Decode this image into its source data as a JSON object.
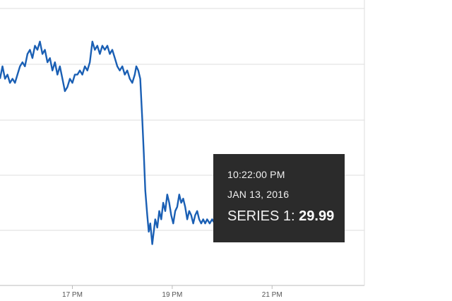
{
  "chart_data": {
    "type": "line",
    "title": "",
    "xlabel": "",
    "ylabel": "",
    "x_ticks": [
      "17 PM",
      "19 PM",
      "21 PM"
    ],
    "x_tick_hours": [
      17,
      19,
      21
    ],
    "xlim_hours": [
      15.55,
      22.85
    ],
    "ylim": [
      29.8,
      30.47
    ],
    "grid": true,
    "legend": "none",
    "series": [
      {
        "color": "#1a5fb4",
        "points": [
          [
            15.55,
            30.3
          ],
          [
            15.6,
            30.33
          ],
          [
            15.65,
            30.3
          ],
          [
            15.7,
            30.31
          ],
          [
            15.75,
            30.29
          ],
          [
            15.8,
            30.3
          ],
          [
            15.85,
            30.29
          ],
          [
            15.9,
            30.31
          ],
          [
            15.95,
            30.33
          ],
          [
            16.0,
            30.34
          ],
          [
            16.05,
            30.33
          ],
          [
            16.1,
            30.36
          ],
          [
            16.15,
            30.37
          ],
          [
            16.2,
            30.35
          ],
          [
            16.25,
            30.38
          ],
          [
            16.3,
            30.37
          ],
          [
            16.35,
            30.39
          ],
          [
            16.4,
            30.36
          ],
          [
            16.45,
            30.37
          ],
          [
            16.5,
            30.34
          ],
          [
            16.55,
            30.35
          ],
          [
            16.6,
            30.32
          ],
          [
            16.65,
            30.34
          ],
          [
            16.7,
            30.31
          ],
          [
            16.75,
            30.33
          ],
          [
            16.8,
            30.3
          ],
          [
            16.85,
            30.27
          ],
          [
            16.9,
            30.28
          ],
          [
            16.95,
            30.3
          ],
          [
            17.0,
            30.29
          ],
          [
            17.05,
            30.31
          ],
          [
            17.1,
            30.31
          ],
          [
            17.15,
            30.32
          ],
          [
            17.2,
            30.31
          ],
          [
            17.25,
            30.33
          ],
          [
            17.3,
            30.32
          ],
          [
            17.35,
            30.34
          ],
          [
            17.4,
            30.39
          ],
          [
            17.45,
            30.37
          ],
          [
            17.5,
            30.38
          ],
          [
            17.55,
            30.36
          ],
          [
            17.6,
            30.38
          ],
          [
            17.65,
            30.37
          ],
          [
            17.7,
            30.38
          ],
          [
            17.75,
            30.36
          ],
          [
            17.8,
            30.37
          ],
          [
            17.85,
            30.35
          ],
          [
            17.9,
            30.33
          ],
          [
            17.95,
            30.32
          ],
          [
            18.0,
            30.33
          ],
          [
            18.05,
            30.31
          ],
          [
            18.1,
            30.32
          ],
          [
            18.15,
            30.3
          ],
          [
            18.2,
            30.29
          ],
          [
            18.25,
            30.31
          ],
          [
            18.28,
            30.33
          ],
          [
            18.32,
            30.32
          ],
          [
            18.36,
            30.3
          ],
          [
            18.4,
            30.2
          ],
          [
            18.43,
            30.12
          ],
          [
            18.46,
            30.03
          ],
          [
            18.5,
            29.97
          ],
          [
            18.53,
            29.93
          ],
          [
            18.56,
            29.95
          ],
          [
            18.6,
            29.9
          ],
          [
            18.63,
            29.93
          ],
          [
            18.66,
            29.96
          ],
          [
            18.7,
            29.94
          ],
          [
            18.74,
            29.98
          ],
          [
            18.78,
            29.96
          ],
          [
            18.82,
            30.0
          ],
          [
            18.86,
            29.98
          ],
          [
            18.9,
            30.02
          ],
          [
            18.94,
            30.0
          ],
          [
            18.98,
            29.97
          ],
          [
            19.02,
            29.95
          ],
          [
            19.06,
            29.98
          ],
          [
            19.1,
            29.99
          ],
          [
            19.14,
            30.02
          ],
          [
            19.18,
            30.0
          ],
          [
            19.22,
            30.01
          ],
          [
            19.26,
            29.99
          ],
          [
            19.3,
            29.96
          ],
          [
            19.34,
            29.98
          ],
          [
            19.38,
            29.97
          ],
          [
            19.42,
            29.95
          ],
          [
            19.46,
            29.97
          ],
          [
            19.5,
            29.98
          ],
          [
            19.54,
            29.96
          ],
          [
            19.58,
            29.95
          ],
          [
            19.62,
            29.96
          ],
          [
            19.66,
            29.95
          ],
          [
            19.7,
            29.96
          ],
          [
            19.75,
            29.95
          ],
          [
            19.8,
            29.96
          ],
          [
            19.85,
            29.95
          ],
          [
            19.9,
            29.96
          ],
          [
            19.95,
            29.95
          ],
          [
            20.0,
            29.96
          ],
          [
            20.05,
            29.97
          ],
          [
            20.1,
            29.96
          ],
          [
            20.15,
            29.97
          ],
          [
            20.2,
            29.96
          ],
          [
            20.25,
            29.97
          ],
          [
            20.3,
            29.96
          ],
          [
            20.35,
            29.97
          ],
          [
            20.4,
            29.96
          ],
          [
            20.45,
            29.97
          ],
          [
            20.5,
            29.96
          ],
          [
            20.55,
            29.97
          ],
          [
            20.6,
            29.96
          ],
          [
            20.65,
            29.97
          ],
          [
            20.7,
            29.96
          ],
          [
            20.75,
            29.97
          ],
          [
            20.8,
            29.96
          ],
          [
            20.85,
            29.97
          ],
          [
            20.9,
            29.96
          ],
          [
            20.95,
            29.97
          ],
          [
            21.0,
            29.97
          ],
          [
            21.05,
            29.96
          ],
          [
            21.1,
            29.97
          ],
          [
            21.15,
            29.96
          ],
          [
            21.2,
            29.97
          ],
          [
            21.25,
            29.96
          ],
          [
            21.3,
            29.97
          ],
          [
            21.35,
            29.96
          ],
          [
            21.4,
            29.97
          ],
          [
            21.45,
            29.96
          ],
          [
            21.5,
            29.97
          ],
          [
            21.55,
            29.96
          ],
          [
            21.6,
            29.97
          ],
          [
            21.65,
            29.96
          ],
          [
            21.7,
            29.97
          ],
          [
            21.75,
            29.96
          ],
          [
            21.8,
            29.96
          ],
          [
            21.85,
            29.97
          ],
          [
            21.9,
            29.96
          ],
          [
            21.95,
            29.96
          ],
          [
            22.0,
            29.97
          ],
          [
            22.05,
            29.96
          ],
          [
            22.1,
            29.97
          ],
          [
            22.15,
            29.96
          ],
          [
            22.2,
            29.95
          ],
          [
            22.24,
            29.96
          ],
          [
            22.28,
            29.94
          ],
          [
            22.32,
            29.93
          ],
          [
            22.34,
            29.94
          ],
          [
            22.367,
            29.99
          ]
        ]
      }
    ],
    "tooltip": {
      "time": "10:22:00 PM",
      "date": "JAN 13, 2016",
      "series_label": "SERIES 1: ",
      "value": "29.99"
    }
  }
}
